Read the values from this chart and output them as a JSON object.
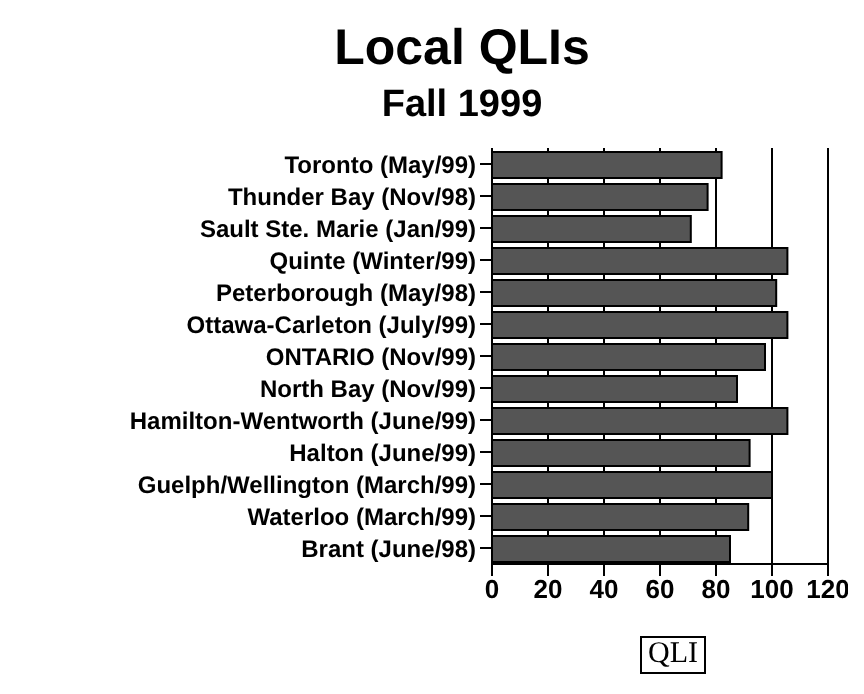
{
  "chart_data": {
    "type": "bar",
    "orientation": "horizontal",
    "title": "Local QLIs",
    "subtitle": "Fall 1999",
    "xlabel": "QLI",
    "categories": [
      "Toronto (May/99)",
      "Thunder Bay (Nov/98)",
      "Sault Ste. Marie (Jan/99)",
      "Quinte (Winter/99)",
      "Peterborough (May/98)",
      "Ottawa-Carleton (July/99)",
      "ONTARIO (Nov/99)",
      "North Bay (Nov/99)",
      "Hamilton-Wentworth (June/99)",
      "Halton (June/99)",
      "Guelph/Wellington (March/99)",
      "Waterloo (March/99)",
      "Brant (June/98)"
    ],
    "values": [
      82,
      77,
      71,
      105.5,
      101.5,
      105.5,
      97.5,
      87.5,
      105.5,
      92,
      100,
      91.5,
      85
    ],
    "color": "#555555",
    "xlim": [
      0,
      120
    ],
    "xticks": [
      0,
      20,
      40,
      60,
      80,
      100,
      120
    ],
    "grid": "x"
  }
}
